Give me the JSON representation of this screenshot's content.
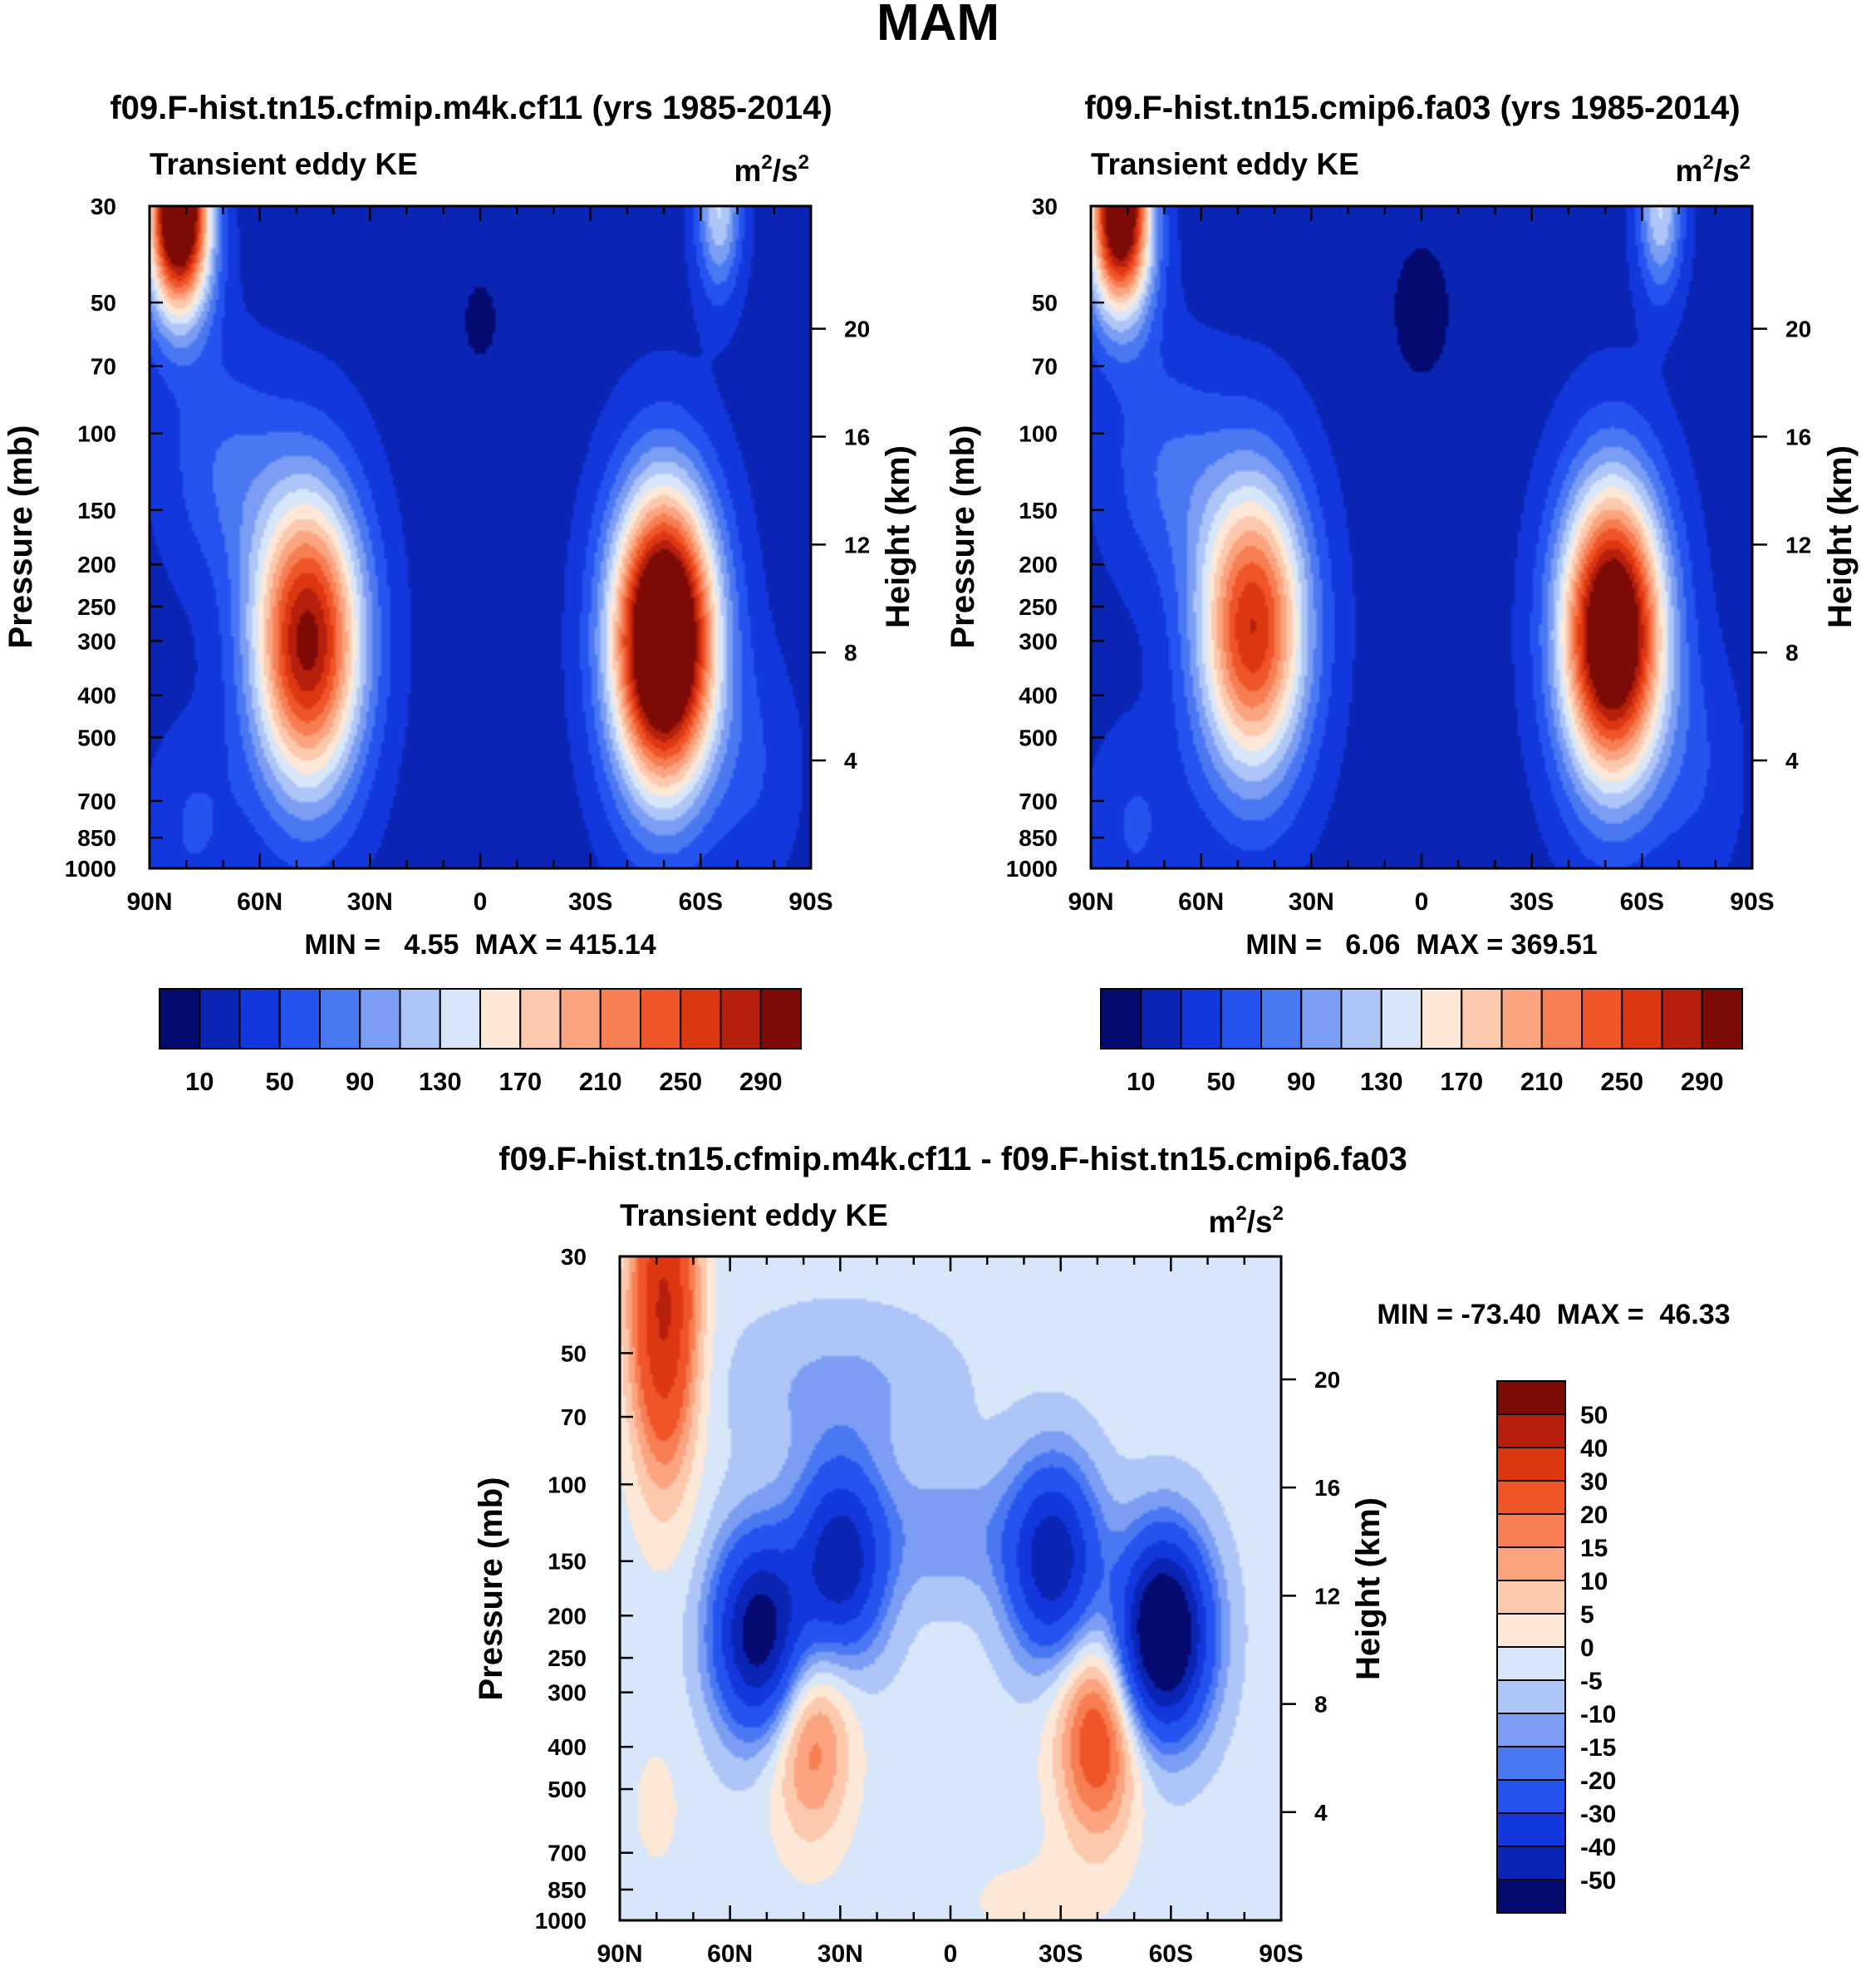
{
  "figure": {
    "title": "MAM"
  },
  "chart_data": [
    {
      "type": "contour",
      "title": "f09.F-hist.tn15.cfmip.m4k.cf11 (yrs 1985-2014)",
      "subtitle_left": "Transient eddy KE",
      "units_base": "m",
      "units_mid": "/s",
      "units_sup": "2",
      "ylabel": "Pressure (mb)",
      "ylabel_right": "Height (km)",
      "x_ticks": [
        "90N",
        "60N",
        "30N",
        "0",
        "30S",
        "60S",
        "90S"
      ],
      "y_ticks": [
        "30",
        "50",
        "70",
        "100",
        "150",
        "200",
        "250",
        "300",
        "400",
        "500",
        "700",
        "850",
        "1000"
      ],
      "y_ticks_right": [
        "20",
        "16",
        "12",
        "8",
        "4"
      ],
      "minmax_text": "MIN =   4.55  MAX = 415.14",
      "min": 4.55,
      "max": 415.14,
      "colorbar_labels": [
        "10",
        "50",
        "90",
        "130",
        "170",
        "210",
        "250",
        "290"
      ],
      "colorbar_levels": [
        10,
        30,
        50,
        70,
        90,
        110,
        130,
        150,
        170,
        190,
        210,
        230,
        250,
        270,
        290
      ],
      "centers": [
        {
          "lat": 47,
          "p": 300,
          "peak": 300
        },
        {
          "lat": -50,
          "p": 300,
          "peak": 415
        },
        {
          "lat": 78,
          "p": 30,
          "peak": 400
        }
      ]
    },
    {
      "type": "contour",
      "title": "f09.F-hist.tn15.cmip6.fa03 (yrs 1985-2014)",
      "subtitle_left": "Transient eddy KE",
      "units_base": "m",
      "units_mid": "/s",
      "units_sup": "2",
      "ylabel": "Pressure (mb)",
      "ylabel_right": "Height (km)",
      "x_ticks": [
        "90N",
        "60N",
        "30N",
        "0",
        "30S",
        "60S",
        "90S"
      ],
      "y_ticks": [
        "30",
        "50",
        "70",
        "100",
        "150",
        "200",
        "250",
        "300",
        "400",
        "500",
        "700",
        "850",
        "1000"
      ],
      "y_ticks_right": [
        "20",
        "16",
        "12",
        "8",
        "4"
      ],
      "minmax_text": "MIN =   6.06  MAX = 369.51",
      "min": 6.06,
      "max": 369.51,
      "colorbar_labels": [
        "10",
        "50",
        "90",
        "130",
        "170",
        "210",
        "250",
        "290"
      ],
      "colorbar_levels": [
        10,
        30,
        50,
        70,
        90,
        110,
        130,
        150,
        170,
        190,
        210,
        230,
        250,
        270,
        290
      ],
      "centers": [
        {
          "lat": 46,
          "p": 280,
          "peak": 270
        },
        {
          "lat": -52,
          "p": 290,
          "peak": 370
        },
        {
          "lat": 78,
          "p": 30,
          "peak": 370
        }
      ]
    },
    {
      "type": "contour",
      "title": "f09.F-hist.tn15.cfmip.m4k.cf11 - f09.F-hist.tn15.cmip6.fa03",
      "subtitle_left": "Transient eddy KE",
      "units_base": "m",
      "units_mid": "/s",
      "units_sup": "2",
      "ylabel": "Pressure (mb)",
      "ylabel_right": "Height (km)",
      "x_ticks": [
        "90N",
        "60N",
        "30N",
        "0",
        "30S",
        "60S",
        "90S"
      ],
      "y_ticks": [
        "30",
        "50",
        "70",
        "100",
        "150",
        "200",
        "250",
        "300",
        "400",
        "500",
        "700",
        "850",
        "1000"
      ],
      "y_ticks_right": [
        "20",
        "16",
        "12",
        "8",
        "4"
      ],
      "minmax_text": "MIN = -73.40  MAX =  46.33",
      "min": -73.4,
      "max": 46.33,
      "colorbar_labels": [
        "50",
        "40",
        "30",
        "20",
        "15",
        "10",
        "5",
        "0",
        "-5",
        "-10",
        "-15",
        "-20",
        "-30",
        "-40",
        "-50"
      ],
      "colorbar_levels": [
        -50,
        -40,
        -30,
        -20,
        -15,
        -10,
        -5,
        0,
        5,
        10,
        15,
        20,
        30,
        40,
        50
      ],
      "centers": [
        {
          "lat": 78,
          "p": 40,
          "peak": 45
        },
        {
          "lat": 38,
          "p": 380,
          "peak": 22
        },
        {
          "lat": -40,
          "p": 380,
          "peak": 30
        },
        {
          "lat": 52,
          "p": 220,
          "peak": -55
        },
        {
          "lat": -58,
          "p": 220,
          "peak": -70
        },
        {
          "lat": 30,
          "p": 150,
          "peak": -45
        },
        {
          "lat": -28,
          "p": 150,
          "peak": -45
        }
      ]
    }
  ],
  "colors": {
    "ke_scale": [
      "#050a70",
      "#0a24b4",
      "#1237dc",
      "#2453f0",
      "#4a78f2",
      "#7b9ef4",
      "#aec5f7",
      "#d8e6fa",
      "#fde8d8",
      "#fcc9ad",
      "#fba47f",
      "#f77e52",
      "#ef5528",
      "#dd3712",
      "#b51f0b",
      "#7d0a05"
    ],
    "diff_scale": [
      "#050a70",
      "#0a24b4",
      "#1237dc",
      "#2453f0",
      "#4a78f2",
      "#7b9ef4",
      "#aec5f7",
      "#d8e6fa",
      "#fde8d8",
      "#fcc9ad",
      "#fba47f",
      "#f77e52",
      "#ef5528",
      "#dd3712",
      "#b51f0b",
      "#7d0a05"
    ]
  }
}
